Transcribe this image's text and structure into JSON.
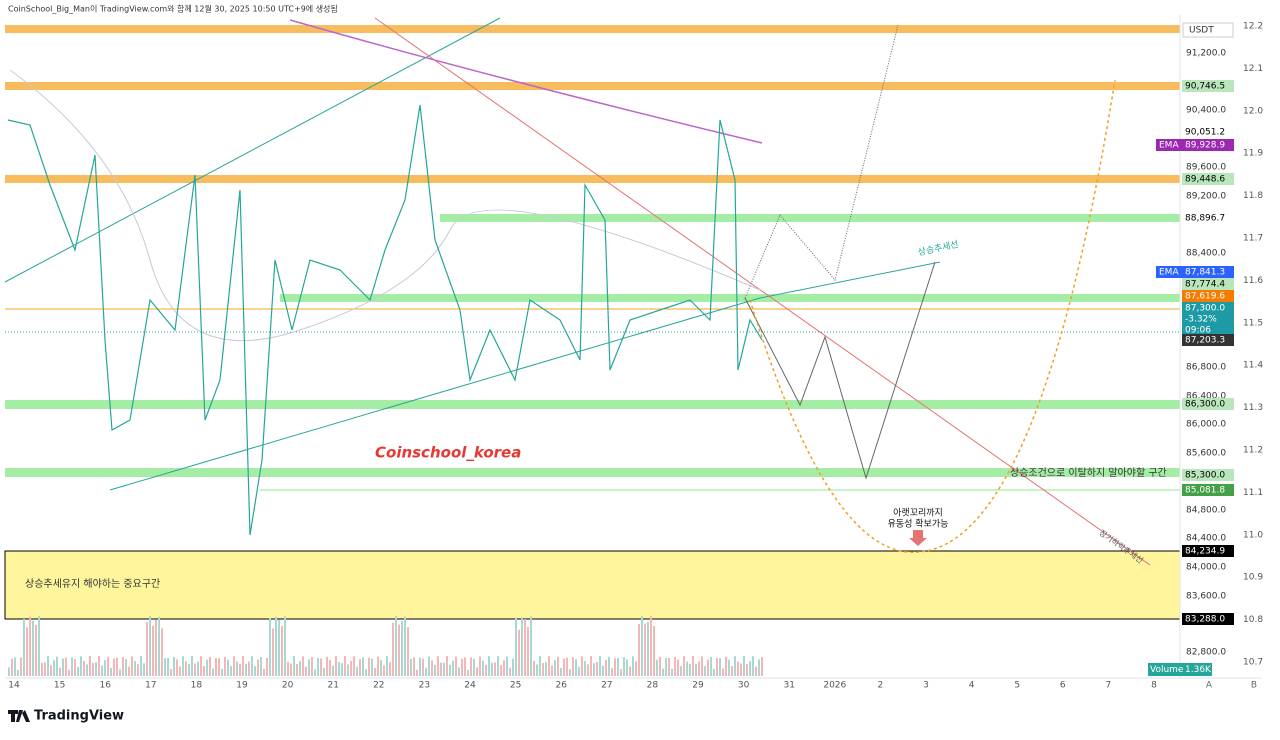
{
  "header": {
    "caption": "CoinSchool_Big_Man이 TradingView.com와 함께 12월 30, 2025 10:50 UTC+9에 생성됨"
  },
  "price_axis": {
    "currency": "USDT",
    "labels": [
      "91,200.0",
      "90,400.0",
      "89,600.0",
      "89,200.0",
      "88,400.0",
      "86,800.0",
      "86,400.0",
      "86,000.0",
      "85,600.0",
      "84,800.0",
      "84,400.0",
      "84,000.0",
      "83,600.0",
      "82,800.0"
    ]
  },
  "price_tags": [
    "90,746.5",
    "90,051.2",
    {
      "tag": "EMA",
      "value": "89,928.9"
    },
    "89,448.6",
    "88,896.7",
    {
      "tag": "EMA",
      "value": "87,841.3"
    },
    "87,774.4",
    "87,619.6",
    {
      "price": "87,300.0",
      "change": "-3.32%",
      "countdown": "09:06"
    },
    "87,203.3",
    "86,300.0",
    "85,300.0",
    "85,081.8",
    "84,234.9",
    "83,288.0"
  ],
  "right_scale": [
    "12.2",
    "12.1",
    "12.0",
    "11.9",
    "11.8",
    "11.7",
    "11.6",
    "11.5",
    "11.4",
    "11.3",
    "11.2",
    "11.1",
    "11.0",
    "10.9",
    "10.8",
    "10.7"
  ],
  "time_axis": {
    "labels": [
      "14",
      "15",
      "16",
      "17",
      "18",
      "19",
      "20",
      "21",
      "22",
      "23",
      "24",
      "25",
      "26",
      "27",
      "28",
      "29",
      "30",
      "31",
      "2026",
      "2",
      "3",
      "4",
      "5",
      "6",
      "7",
      "8"
    ],
    "auto": "A",
    "scale": "B"
  },
  "annotations": {
    "watermark": "Coinschool_korea",
    "uptrend": "상승추세선",
    "keep_zone": "상승조건으로 이탈하지 말아야할 구간",
    "wick_line1": "아랫꼬리까지",
    "wick_line2": "유동성 확보가능",
    "downtrend": "장기하락추세선",
    "important_zone": "상승추세유지 해야하는 중요구간"
  },
  "volume": {
    "label": "Volume",
    "value": "1.36K"
  },
  "footer": {
    "brand": "TradingView"
  }
}
